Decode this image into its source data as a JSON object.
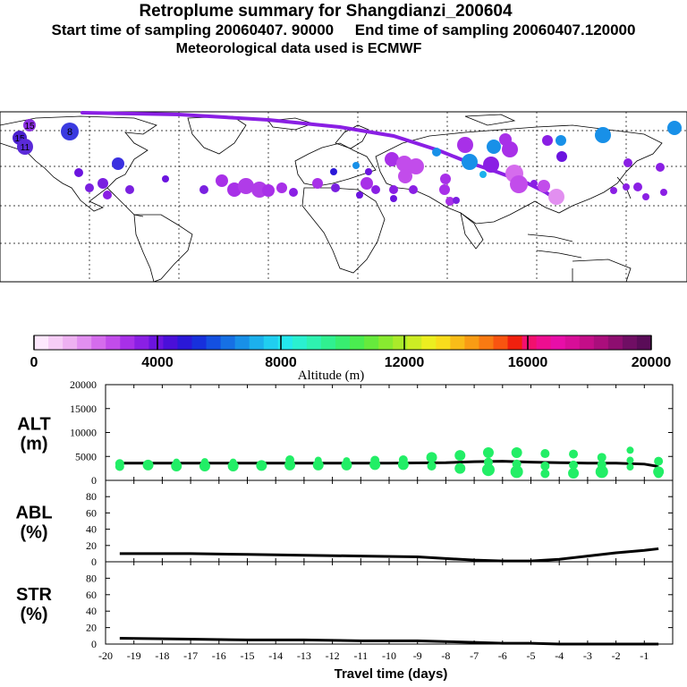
{
  "header": {
    "title": "Retroplume summary for Shangdianzi_200604",
    "subtitle_line1": "Start time of sampling 20060407. 90000     End time of sampling 20060407.120000",
    "subtitle_line2": "Meteorological data used is ECMWF"
  },
  "colorbar": {
    "title": "Altitude (m)",
    "ticks": [
      "0",
      "4000",
      "8000",
      "12000",
      "16000",
      "20000"
    ],
    "colors": [
      "#fde8fd",
      "#f6cdf6",
      "#eeb1f1",
      "#e28ff0",
      "#d56ced",
      "#c24ceb",
      "#a830e8",
      "#8a1fe4",
      "#6b14df",
      "#4a0fd9",
      "#2a18d8",
      "#1730dc",
      "#1450e0",
      "#1670e4",
      "#1890e8",
      "#1cb0ec",
      "#20cef0",
      "#24e8ee",
      "#2af0d0",
      "#2ef2b0",
      "#30f090",
      "#38ee70",
      "#4aec50",
      "#66ea3c",
      "#88ea30",
      "#aaea2a",
      "#ccec24",
      "#ecee20",
      "#f8dc1c",
      "#f8bc18",
      "#f89c14",
      "#f87a12",
      "#f85410",
      "#f0200e",
      "#f2106e",
      "#ee0e90",
      "#e80ea8",
      "#d80e98",
      "#c40e88",
      "#aa0e7c",
      "#8e0e70",
      "#700e64",
      "#5a0c58"
    ]
  },
  "map": {
    "plume_color": "#8a1fe4",
    "end_label_color": "#7a3fd6"
  },
  "chart_data": [
    {
      "type": "scatter",
      "panel": "ALT",
      "ylabel": "ALT\n(m)",
      "ylabel_line1": "ALT",
      "ylabel_line2": "(m)",
      "ylim": [
        0,
        20000
      ],
      "yticks": [
        0,
        5000,
        10000,
        15000,
        20000
      ],
      "ytick_labels": [
        "0",
        "5000",
        "10000",
        "15000",
        "20000"
      ],
      "series": [
        {
          "name": "mean altitude",
          "style": "line",
          "color": "#000000",
          "x": [
            -19.5,
            -18,
            -16,
            -14,
            -12,
            -10,
            -8,
            -7,
            -6,
            -5,
            -4,
            -3,
            -2,
            -1,
            -0.5
          ],
          "y": [
            3600,
            3600,
            3600,
            3600,
            3600,
            3600,
            3700,
            3900,
            4000,
            3800,
            3700,
            3600,
            3600,
            3400,
            2900
          ]
        },
        {
          "name": "cluster altitudes",
          "style": "points",
          "color": "#22ee66",
          "points": [
            {
              "x": -19.5,
              "y": 3500,
              "s": 5
            },
            {
              "x": -19.5,
              "y": 2900,
              "s": 5
            },
            {
              "x": -18.5,
              "y": 3200,
              "s": 6
            },
            {
              "x": -17.5,
              "y": 3000,
              "s": 6
            },
            {
              "x": -17.5,
              "y": 3800,
              "s": 4
            },
            {
              "x": -16.5,
              "y": 3000,
              "s": 6
            },
            {
              "x": -16.5,
              "y": 3900,
              "s": 4
            },
            {
              "x": -15.5,
              "y": 3000,
              "s": 6
            },
            {
              "x": -15.5,
              "y": 3800,
              "s": 4
            },
            {
              "x": -14.5,
              "y": 3100,
              "s": 6
            },
            {
              "x": -13.5,
              "y": 3200,
              "s": 6
            },
            {
              "x": -13.5,
              "y": 4300,
              "s": 5
            },
            {
              "x": -12.5,
              "y": 3200,
              "s": 6
            },
            {
              "x": -12.5,
              "y": 4200,
              "s": 4
            },
            {
              "x": -11.5,
              "y": 3200,
              "s": 6
            },
            {
              "x": -11.5,
              "y": 4100,
              "s": 4
            },
            {
              "x": -10.5,
              "y": 3300,
              "s": 6
            },
            {
              "x": -10.5,
              "y": 4200,
              "s": 5
            },
            {
              "x": -9.5,
              "y": 3300,
              "s": 6
            },
            {
              "x": -9.5,
              "y": 4300,
              "s": 5
            },
            {
              "x": -8.5,
              "y": 4800,
              "s": 6
            },
            {
              "x": -8.5,
              "y": 3000,
              "s": 5
            },
            {
              "x": -7.5,
              "y": 5200,
              "s": 6
            },
            {
              "x": -7.5,
              "y": 2500,
              "s": 6
            },
            {
              "x": -6.5,
              "y": 5800,
              "s": 6
            },
            {
              "x": -6.5,
              "y": 2200,
              "s": 7
            },
            {
              "x": -6.5,
              "y": 3800,
              "s": 5
            },
            {
              "x": -5.5,
              "y": 5800,
              "s": 6
            },
            {
              "x": -5.5,
              "y": 1800,
              "s": 7
            },
            {
              "x": -5.5,
              "y": 3400,
              "s": 5
            },
            {
              "x": -4.5,
              "y": 5600,
              "s": 5
            },
            {
              "x": -4.5,
              "y": 1400,
              "s": 5
            },
            {
              "x": -4.5,
              "y": 3000,
              "s": 5
            },
            {
              "x": -3.5,
              "y": 5500,
              "s": 5
            },
            {
              "x": -3.5,
              "y": 1500,
              "s": 6
            },
            {
              "x": -3.5,
              "y": 3200,
              "s": 5
            },
            {
              "x": -2.5,
              "y": 4800,
              "s": 5
            },
            {
              "x": -2.5,
              "y": 1800,
              "s": 7
            },
            {
              "x": -2.5,
              "y": 3300,
              "s": 5
            },
            {
              "x": -1.5,
              "y": 6300,
              "s": 4
            },
            {
              "x": -1.5,
              "y": 4200,
              "s": 4
            },
            {
              "x": -1.5,
              "y": 2800,
              "s": 4
            },
            {
              "x": -0.5,
              "y": 4000,
              "s": 5
            },
            {
              "x": -0.5,
              "y": 1800,
              "s": 6
            },
            {
              "x": -0.5,
              "y": 1400,
              "s": 5
            }
          ]
        }
      ]
    },
    {
      "type": "line",
      "panel": "ABL",
      "ylabel": "ABL\n(%)",
      "ylabel_line1": "ABL",
      "ylabel_line2": "(%)",
      "ylim": [
        0,
        100
      ],
      "yticks": [
        0,
        20,
        40,
        60,
        80
      ],
      "ytick_labels": [
        "0",
        "20",
        "40",
        "60",
        "80"
      ],
      "series": [
        {
          "name": "fraction in boundary layer",
          "x": [
            -19.5,
            -17,
            -15,
            -13,
            -11,
            -9,
            -8,
            -7,
            -6,
            -5,
            -4,
            -3,
            -2,
            -1,
            -0.5
          ],
          "y": [
            10,
            10,
            9,
            8,
            7,
            6,
            4,
            2,
            1,
            1,
            3,
            7,
            11,
            14,
            16
          ]
        }
      ]
    },
    {
      "type": "line",
      "panel": "STR",
      "ylabel": "STR\n(%)",
      "ylabel_line1": "STR",
      "ylabel_line2": "(%)",
      "ylim": [
        0,
        100
      ],
      "yticks": [
        0,
        20,
        40,
        60,
        80
      ],
      "ytick_labels": [
        "0",
        "20",
        "40",
        "60",
        "80"
      ],
      "xlabel": "Travel time (days)",
      "xlim": [
        -20,
        0
      ],
      "xticks": [
        -20,
        -19,
        -18,
        -17,
        -16,
        -15,
        -14,
        -13,
        -12,
        -11,
        -10,
        -9,
        -8,
        -7,
        -6,
        -5,
        -4,
        -3,
        -2,
        -1
      ],
      "xtick_labels": [
        "-20",
        "-19",
        "-18",
        "-17",
        "-16",
        "-15",
        "-14",
        "-13",
        "-12",
        "-11",
        "-10",
        "-9",
        "-8",
        "-7",
        "-6",
        "-5",
        "-4",
        "-3",
        "-2",
        "-1"
      ],
      "series": [
        {
          "name": "fraction in stratosphere",
          "x": [
            -19.5,
            -17,
            -15,
            -13,
            -11,
            -9,
            -8,
            -7,
            -6,
            -5,
            -4,
            -3,
            -2,
            -1,
            -0.5
          ],
          "y": [
            7,
            6,
            5,
            5,
            4,
            4,
            3,
            2,
            1,
            1,
            0,
            0,
            0,
            0,
            0
          ]
        }
      ]
    }
  ]
}
